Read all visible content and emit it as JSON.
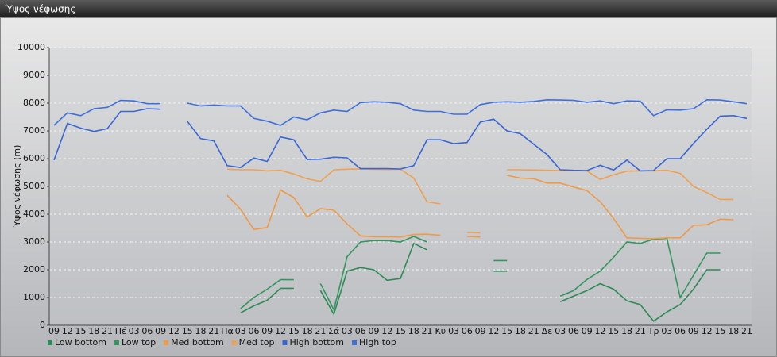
{
  "window_title": "Ύψος νέφωσης",
  "chart_data": {
    "type": "line",
    "y_label": "Ύψος νέφωσης (m)",
    "categories": [
      "09",
      "12",
      "15",
      "18",
      "21",
      "Πέ",
      "03",
      "06",
      "09",
      "12",
      "15",
      "18",
      "21",
      "Πα",
      "03",
      "06",
      "09",
      "12",
      "15",
      "18",
      "21",
      "Σά",
      "03",
      "06",
      "09",
      "12",
      "15",
      "18",
      "21",
      "Κυ",
      "03",
      "06",
      "09",
      "12",
      "15",
      "18",
      "21",
      "Δε",
      "03",
      "06",
      "09",
      "12",
      "15",
      "18",
      "21",
      "Τρ",
      "03",
      "06",
      "09",
      "12",
      "15",
      "18",
      "21"
    ],
    "ylim": [
      0,
      10000
    ],
    "yticks": [
      0,
      1000,
      2000,
      3000,
      4000,
      5000,
      6000,
      7000,
      8000,
      9000,
      10000
    ],
    "grid": true,
    "series": [
      {
        "name": "Low bottom",
        "color": "#2e8b57",
        "values": [
          null,
          null,
          null,
          null,
          null,
          null,
          null,
          null,
          null,
          null,
          null,
          null,
          null,
          null,
          450,
          700,
          900,
          1330,
          1330,
          null,
          1250,
          400,
          1950,
          2080,
          2000,
          1620,
          1680,
          2950,
          2720,
          null,
          null,
          null,
          null,
          1950,
          1950,
          null,
          null,
          null,
          850,
          1050,
          1250,
          1500,
          1300,
          880,
          750,
          150,
          480,
          750,
          1300,
          2000,
          2000,
          null,
          null
        ]
      },
      {
        "name": "Low top",
        "color": "#33965f",
        "values": [
          null,
          null,
          null,
          null,
          null,
          null,
          null,
          null,
          null,
          null,
          null,
          null,
          null,
          null,
          600,
          1000,
          1300,
          1640,
          1640,
          null,
          1500,
          560,
          2470,
          3000,
          3050,
          3050,
          3000,
          3200,
          3000,
          null,
          null,
          null,
          null,
          2330,
          2330,
          null,
          null,
          null,
          1050,
          1250,
          1650,
          1950,
          2450,
          3000,
          2950,
          3100,
          3130,
          1000,
          1800,
          2600,
          2600,
          null,
          null
        ]
      },
      {
        "name": "Med bottom",
        "color": "#ee9a48",
        "values": [
          null,
          null,
          null,
          null,
          null,
          null,
          null,
          null,
          null,
          null,
          null,
          null,
          null,
          4680,
          4180,
          3450,
          3520,
          4870,
          4600,
          3900,
          4200,
          4150,
          3650,
          3220,
          3190,
          3190,
          3180,
          3270,
          3280,
          3240,
          null,
          3200,
          3180,
          null,
          5400,
          5300,
          5280,
          5120,
          5120,
          4980,
          4850,
          4450,
          3850,
          3150,
          3130,
          3120,
          3150,
          3150,
          3600,
          3620,
          3820,
          3800,
          null
        ]
      },
      {
        "name": "Med top",
        "color": "#f0a050",
        "values": [
          null,
          null,
          null,
          null,
          null,
          null,
          null,
          null,
          null,
          null,
          null,
          null,
          null,
          5620,
          5600,
          5600,
          5560,
          5580,
          5450,
          5270,
          5180,
          5600,
          5620,
          5630,
          5620,
          5610,
          5620,
          5300,
          4450,
          4370,
          null,
          3350,
          3330,
          null,
          5600,
          5600,
          5590,
          5580,
          5570,
          5570,
          5560,
          5250,
          5420,
          5550,
          5560,
          5560,
          5580,
          5470,
          5000,
          4780,
          4530,
          4530,
          null
        ]
      },
      {
        "name": "High bottom",
        "color": "#3a66d4",
        "values": [
          5950,
          7270,
          7100,
          6980,
          7080,
          7700,
          7700,
          7800,
          7780,
          null,
          7350,
          6720,
          6640,
          5750,
          5680,
          6020,
          5900,
          6780,
          6680,
          5970,
          5980,
          6050,
          6030,
          5640,
          5640,
          5640,
          5630,
          5750,
          6680,
          6680,
          6540,
          6580,
          7320,
          7420,
          7000,
          6900,
          6520,
          6150,
          5600,
          5580,
          5570,
          5760,
          5590,
          5950,
          5560,
          5570,
          6000,
          6000,
          6550,
          7060,
          7530,
          7550,
          7450
        ]
      },
      {
        "name": "High top",
        "color": "#3f6fdc",
        "values": [
          7200,
          7650,
          7550,
          7800,
          7850,
          8100,
          8080,
          7980,
          7980,
          null,
          8000,
          7900,
          7930,
          7900,
          7900,
          7450,
          7350,
          7200,
          7500,
          7400,
          7650,
          7750,
          7700,
          8020,
          8050,
          8030,
          7980,
          7750,
          7700,
          7700,
          7600,
          7600,
          7950,
          8030,
          8050,
          8030,
          8060,
          8120,
          8110,
          8100,
          8030,
          8080,
          7980,
          8080,
          8070,
          7550,
          7760,
          7750,
          7800,
          8120,
          8110,
          8050,
          7980
        ]
      }
    ]
  }
}
